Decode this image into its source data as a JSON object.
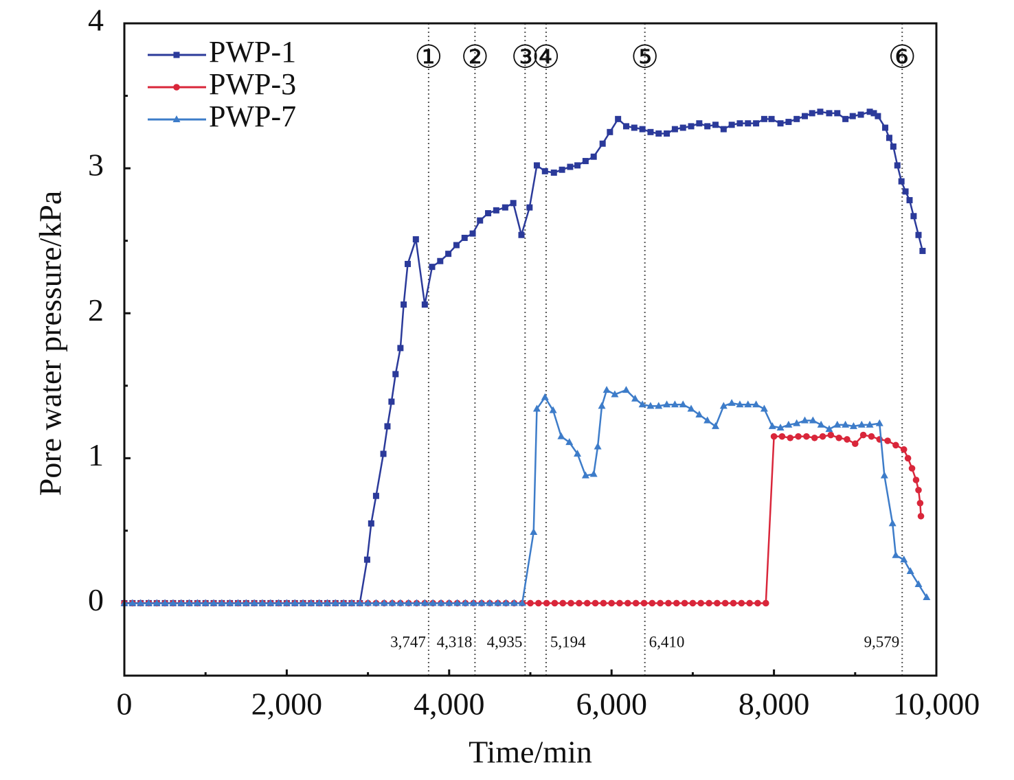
{
  "chart_data": {
    "type": "line",
    "xlabel": "Time/min",
    "ylabel": "Pore water pressure/kPa",
    "xlim": [
      0,
      10000
    ],
    "ylim": [
      -0.5,
      4
    ],
    "xticks": [
      0,
      {
        "value": 2000,
        "label": "2,000"
      },
      {
        "value": 4000,
        "label": "4,000"
      },
      {
        "value": 6000,
        "label": "6,000"
      },
      {
        "value": 8000,
        "label": "8,000"
      },
      {
        "value": 10000,
        "label": "10,000"
      }
    ],
    "xminorticks": [
      1000,
      3000,
      5000,
      7000,
      9000
    ],
    "yticks": [
      0,
      1,
      2,
      3,
      4
    ],
    "yminorticks": [
      -0.5,
      0.5,
      1.5,
      2.5,
      3.5
    ],
    "legend": "upper left",
    "annotations": [
      {
        "value": 3747,
        "label": "3,747",
        "marker": "①"
      },
      {
        "value": 4318,
        "label": "4,318",
        "marker": "②"
      },
      {
        "value": 4935,
        "label": "4,935",
        "marker": "③"
      },
      {
        "value": 5194,
        "label": "5,194",
        "marker": "④"
      },
      {
        "value": 6410,
        "label": "6,410",
        "marker": "⑤"
      },
      {
        "value": 9579,
        "label": "9,579",
        "marker": "⑥"
      }
    ],
    "series": [
      {
        "name": "PWP-1",
        "color": "#2b3a9a",
        "marker": "square",
        "x": [
          0,
          100,
          200,
          300,
          400,
          500,
          600,
          700,
          800,
          900,
          1000,
          1100,
          1200,
          1300,
          1400,
          1500,
          1600,
          1700,
          1800,
          1900,
          2000,
          2100,
          2200,
          2300,
          2400,
          2500,
          2600,
          2700,
          2800,
          2900,
          2990,
          3040,
          3100,
          3190,
          3240,
          3290,
          3340,
          3400,
          3440,
          3490,
          3590,
          3700,
          3790,
          3890,
          3990,
          4090,
          4190,
          4290,
          4380,
          4480,
          4580,
          4690,
          4790,
          4890,
          4990,
          5080,
          5180,
          5290,
          5390,
          5490,
          5580,
          5680,
          5780,
          5890,
          5980,
          6080,
          6180,
          6280,
          6380,
          6480,
          6580,
          6680,
          6780,
          6880,
          6980,
          7080,
          7180,
          7280,
          7380,
          7480,
          7580,
          7680,
          7780,
          7880,
          7970,
          8080,
          8180,
          8280,
          8380,
          8470,
          8570,
          8680,
          8780,
          8880,
          8970,
          9070,
          9180,
          9230,
          9280,
          9370,
          9420,
          9470,
          9520,
          9570,
          9620,
          9670,
          9720,
          9780,
          9830
        ],
        "values": [
          0,
          0,
          0,
          0,
          0,
          0,
          0,
          0,
          0,
          0,
          0,
          0,
          0,
          0,
          0,
          0,
          0,
          0,
          0,
          0,
          0,
          0,
          0,
          0,
          0,
          0,
          0,
          0,
          0,
          0,
          0.3,
          0.55,
          0.74,
          1.03,
          1.22,
          1.39,
          1.58,
          1.76,
          2.06,
          2.34,
          2.51,
          2.06,
          2.32,
          2.36,
          2.41,
          2.47,
          2.52,
          2.55,
          2.64,
          2.69,
          2.71,
          2.73,
          2.76,
          2.54,
          2.73,
          3.02,
          2.98,
          2.97,
          2.99,
          3.01,
          3.02,
          3.05,
          3.08,
          3.17,
          3.25,
          3.34,
          3.29,
          3.28,
          3.27,
          3.25,
          3.24,
          3.24,
          3.27,
          3.28,
          3.29,
          3.31,
          3.29,
          3.3,
          3.27,
          3.3,
          3.31,
          3.31,
          3.31,
          3.34,
          3.34,
          3.31,
          3.32,
          3.34,
          3.36,
          3.38,
          3.39,
          3.38,
          3.38,
          3.34,
          3.36,
          3.37,
          3.39,
          3.38,
          3.36,
          3.28,
          3.21,
          3.15,
          3.02,
          2.91,
          2.84,
          2.78,
          2.67,
          2.54,
          2.43
        ]
      },
      {
        "name": "PWP-3",
        "color": "#d9263a",
        "marker": "circle",
        "x": [
          0,
          100,
          200,
          300,
          400,
          500,
          600,
          700,
          800,
          900,
          1000,
          1100,
          1200,
          1300,
          1400,
          1500,
          1600,
          1700,
          1800,
          1900,
          2000,
          2100,
          2200,
          2300,
          2400,
          2500,
          2600,
          2700,
          2800,
          2900,
          3000,
          3100,
          3200,
          3300,
          3400,
          3500,
          3600,
          3700,
          3800,
          3900,
          4000,
          4100,
          4200,
          4300,
          4400,
          4500,
          4600,
          4700,
          4800,
          4900,
          5000,
          5100,
          5200,
          5300,
          5400,
          5500,
          5600,
          5700,
          5800,
          5900,
          6000,
          6100,
          6200,
          6300,
          6400,
          6500,
          6600,
          6700,
          6800,
          6900,
          7000,
          7100,
          7200,
          7300,
          7400,
          7500,
          7600,
          7700,
          7800,
          7900,
          8000,
          8100,
          8200,
          8300,
          8400,
          8500,
          8600,
          8700,
          8800,
          8900,
          9000,
          9100,
          9200,
          9300,
          9400,
          9500,
          9600,
          9650,
          9700,
          9750,
          9780,
          9800,
          9810
        ],
        "values": [
          0,
          0,
          0,
          0,
          0,
          0,
          0,
          0,
          0,
          0,
          0,
          0,
          0,
          0,
          0,
          0,
          0,
          0,
          0,
          0,
          0,
          0,
          0,
          0,
          0,
          0,
          0,
          0,
          0,
          0,
          0,
          0,
          0,
          0,
          0,
          0,
          0,
          0,
          0,
          0,
          0,
          0,
          0,
          0,
          0,
          0,
          0,
          0,
          0,
          0,
          0,
          0,
          0,
          0,
          0,
          0,
          0,
          0,
          0,
          0,
          0,
          0,
          0,
          0,
          0,
          0,
          0,
          0,
          0,
          0,
          0,
          0,
          0,
          0,
          0,
          0,
          0,
          0,
          0,
          0,
          1.15,
          1.15,
          1.14,
          1.15,
          1.15,
          1.14,
          1.15,
          1.16,
          1.14,
          1.13,
          1.1,
          1.16,
          1.15,
          1.13,
          1.12,
          1.09,
          1.06,
          1.0,
          0.93,
          0.85,
          0.78,
          0.69,
          0.6
        ]
      },
      {
        "name": "PWP-7",
        "color": "#3d7cc9",
        "marker": "triangle",
        "x": [
          0,
          100,
          200,
          300,
          400,
          500,
          600,
          700,
          800,
          900,
          1000,
          1100,
          1200,
          1300,
          1400,
          1500,
          1600,
          1700,
          1800,
          1900,
          2000,
          2100,
          2200,
          2300,
          2400,
          2500,
          2600,
          2700,
          2800,
          2900,
          3000,
          3100,
          3200,
          3300,
          3400,
          3500,
          3600,
          3700,
          3800,
          3900,
          4000,
          4100,
          4200,
          4300,
          4400,
          4500,
          4600,
          4700,
          4800,
          4900,
          5040,
          5080,
          5180,
          5280,
          5380,
          5480,
          5580,
          5680,
          5780,
          5830,
          5880,
          5940,
          6040,
          6180,
          6290,
          6380,
          6480,
          6580,
          6680,
          6780,
          6880,
          6980,
          7080,
          7180,
          7280,
          7380,
          7480,
          7580,
          7680,
          7780,
          7880,
          7980,
          8080,
          8180,
          8280,
          8380,
          8480,
          8580,
          8680,
          8780,
          8880,
          8980,
          9080,
          9180,
          9300,
          9360,
          9460,
          9500,
          9600,
          9680,
          9780,
          9880
        ],
        "values": [
          0,
          0,
          0,
          0,
          0,
          0,
          0,
          0,
          0,
          0,
          0,
          0,
          0,
          0,
          0,
          0,
          0,
          0,
          0,
          0,
          0,
          0,
          0,
          0,
          0,
          0,
          0,
          0,
          0,
          0,
          0,
          0,
          0,
          0,
          0,
          0,
          0,
          0,
          0,
          0,
          0,
          0,
          0,
          0,
          0,
          0,
          0,
          0,
          0,
          0,
          0.49,
          1.34,
          1.42,
          1.33,
          1.15,
          1.11,
          1.03,
          0.88,
          0.89,
          1.08,
          1.36,
          1.47,
          1.44,
          1.47,
          1.41,
          1.37,
          1.36,
          1.36,
          1.37,
          1.37,
          1.37,
          1.34,
          1.3,
          1.26,
          1.22,
          1.36,
          1.38,
          1.37,
          1.37,
          1.37,
          1.34,
          1.22,
          1.21,
          1.23,
          1.24,
          1.26,
          1.26,
          1.23,
          1.2,
          1.23,
          1.23,
          1.22,
          1.23,
          1.23,
          1.24,
          0.88,
          0.55,
          0.33,
          0.3,
          0.22,
          0.13,
          0.04
        ]
      }
    ]
  }
}
